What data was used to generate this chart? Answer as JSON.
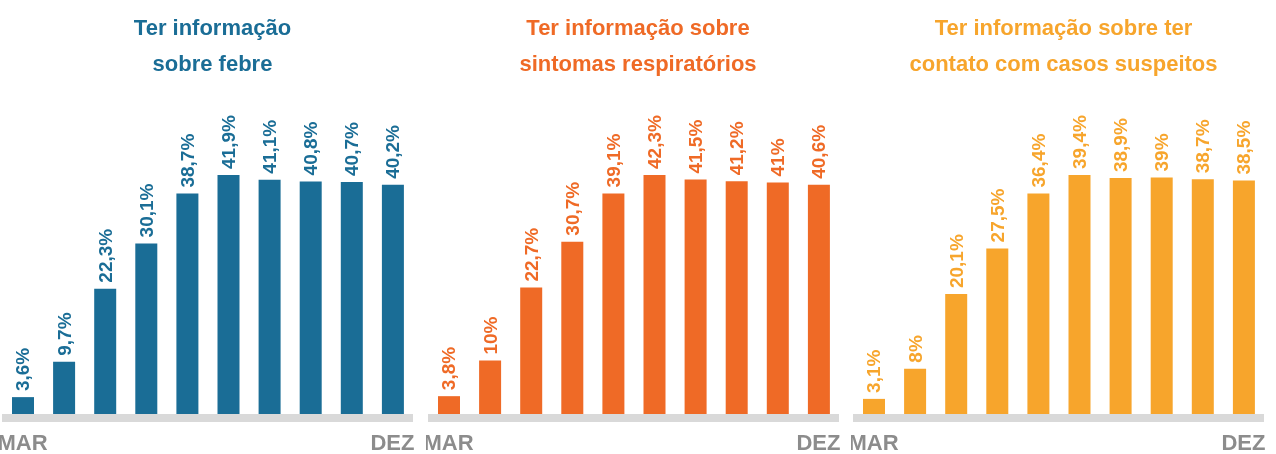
{
  "chart_data": [
    {
      "type": "bar",
      "title": "Ter informação\nsobre febre",
      "categories": [
        "MAR",
        null,
        null,
        null,
        null,
        null,
        null,
        null,
        null,
        "DEZ"
      ],
      "values": [
        3.6,
        9.7,
        22.3,
        30.1,
        38.7,
        41.9,
        41.1,
        40.8,
        40.7,
        40.2
      ],
      "value_labels": [
        "3,6%",
        "9,7%",
        "22,3%",
        "30,1%",
        "38,7%",
        "41,9%",
        "41,1%",
        "40,8%",
        "40,7%",
        "40,2%"
      ],
      "color": "#1a6d96"
    },
    {
      "type": "bar",
      "title": "Ter informação sobre\nsintomas respiratórios",
      "categories": [
        "MAR",
        null,
        null,
        null,
        null,
        null,
        null,
        null,
        null,
        "DEZ"
      ],
      "values": [
        3.8,
        10,
        22.7,
        30.7,
        39.1,
        42.3,
        41.5,
        41.2,
        41,
        40.6
      ],
      "value_labels": [
        "3,8%",
        "10%",
        "22,7%",
        "30,7%",
        "39,1%",
        "42,3%",
        "41,5%",
        "41,2%",
        "41%",
        "40,6%"
      ],
      "color": "#ef6a26"
    },
    {
      "type": "bar",
      "title": "Ter informação sobre ter\ncontato com casos suspeitos",
      "categories": [
        "MAR",
        null,
        null,
        null,
        null,
        null,
        null,
        null,
        null,
        "DEZ"
      ],
      "values": [
        3.1,
        8,
        20.1,
        27.5,
        36.4,
        39.4,
        38.9,
        39,
        38.7,
        38.5
      ],
      "value_labels": [
        "3,1%",
        "8%",
        "20,1%",
        "27,5%",
        "36,4%",
        "39,4%",
        "38,9%",
        "39%",
        "38,7%",
        "38,5%"
      ],
      "color": "#f7a52c"
    }
  ]
}
